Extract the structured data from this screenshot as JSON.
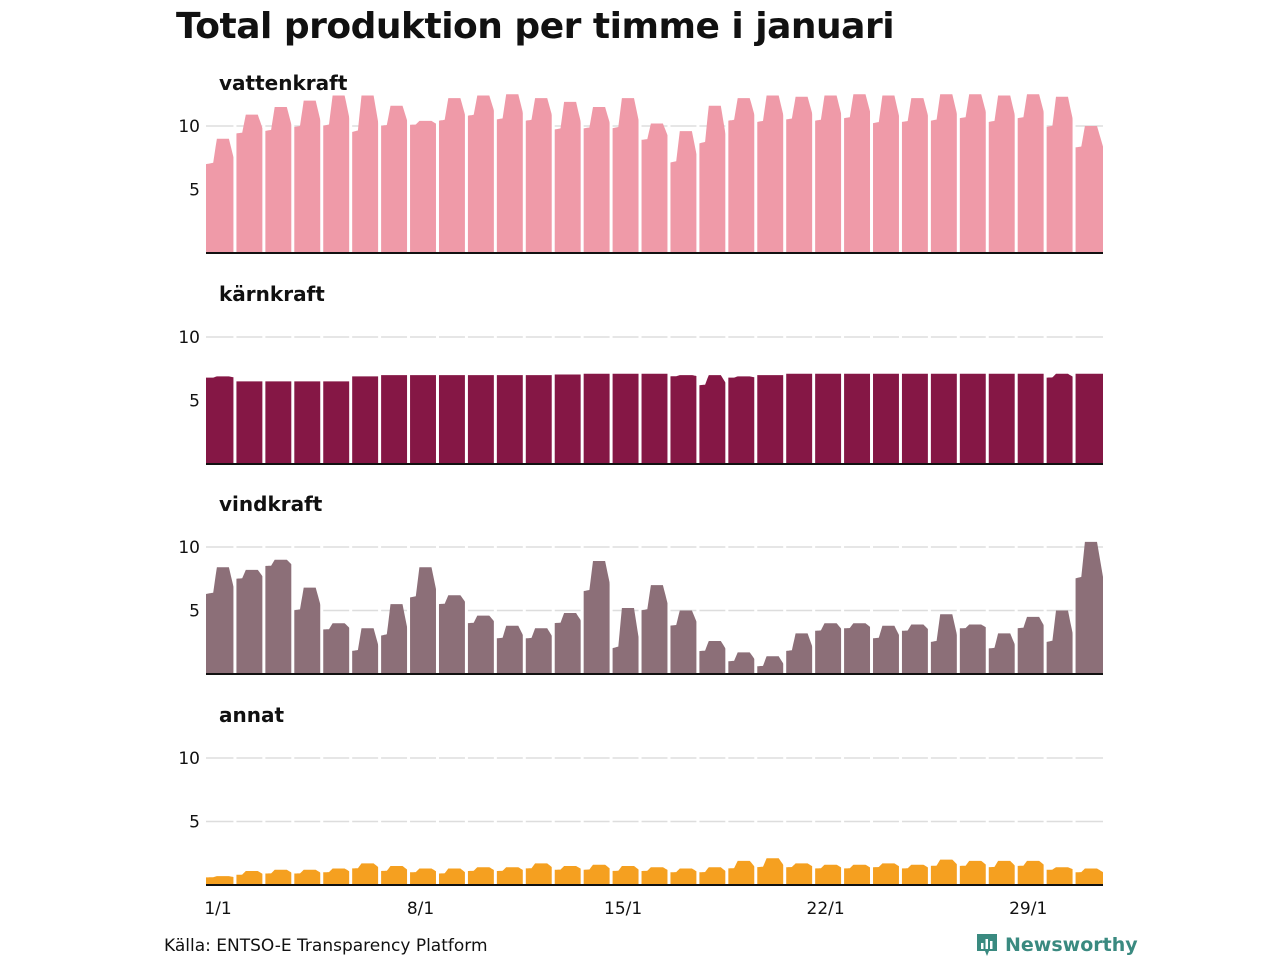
{
  "title": "Total produktion per timme i januari",
  "source": "Källa: ENTSO-E Transparency Platform",
  "brand": "Newsworthy",
  "colors": {
    "brand": "#3a8a80",
    "gridline": "#dddddd",
    "baseline": "#111111",
    "day_separator": "#ffffff"
  },
  "chart_data": [
    {
      "type": "area",
      "title": "vattenkraft",
      "color": "#ef9aa8",
      "ylim": [
        0,
        10
      ],
      "yticks": [
        5,
        10
      ],
      "x": [
        "1/1",
        "2/1",
        "3/1",
        "4/1",
        "5/1",
        "6/1",
        "7/1",
        "8/1",
        "9/1",
        "10/1",
        "11/1",
        "12/1",
        "13/1",
        "14/1",
        "15/1",
        "16/1",
        "17/1",
        "18/1",
        "19/1",
        "20/1",
        "21/1",
        "22/1",
        "23/1",
        "24/1",
        "25/1",
        "26/1",
        "27/1",
        "28/1",
        "29/1",
        "30/1",
        "31/1"
      ],
      "daily_night": [
        7.0,
        9.4,
        9.6,
        9.9,
        10.0,
        9.5,
        10.0,
        10.1,
        10.4,
        10.8,
        10.5,
        10.4,
        9.7,
        9.8,
        9.8,
        8.9,
        7.1,
        8.6,
        10.4,
        10.3,
        10.5,
        10.4,
        10.6,
        10.2,
        10.3,
        10.4,
        10.6,
        10.3,
        10.6,
        9.9,
        8.3
      ],
      "daily_peak": [
        9.0,
        10.9,
        11.5,
        12.0,
        12.4,
        12.4,
        11.6,
        10.4,
        12.2,
        12.4,
        12.5,
        12.2,
        11.9,
        11.5,
        12.2,
        10.2,
        9.6,
        11.6,
        12.2,
        12.4,
        12.3,
        12.4,
        12.5,
        12.4,
        12.2,
        12.5,
        12.5,
        12.4,
        12.5,
        12.3,
        10.0
      ],
      "xticks": [
        "1/1",
        "8/1",
        "15/1",
        "22/1",
        "29/1"
      ]
    },
    {
      "type": "area",
      "title": "kärnkraft",
      "color": "#851745",
      "ylim": [
        0,
        10
      ],
      "yticks": [
        5,
        10
      ],
      "x": [
        "1/1",
        "2/1",
        "3/1",
        "4/1",
        "5/1",
        "6/1",
        "7/1",
        "8/1",
        "9/1",
        "10/1",
        "11/1",
        "12/1",
        "13/1",
        "14/1",
        "15/1",
        "16/1",
        "17/1",
        "18/1",
        "19/1",
        "20/1",
        "21/1",
        "22/1",
        "23/1",
        "24/1",
        "25/1",
        "26/1",
        "27/1",
        "28/1",
        "29/1",
        "30/1",
        "31/1"
      ],
      "daily_night": [
        6.8,
        6.5,
        6.5,
        6.5,
        6.5,
        6.9,
        7.0,
        7.0,
        7.0,
        7.0,
        7.0,
        7.0,
        7.05,
        7.1,
        7.1,
        7.1,
        6.9,
        6.2,
        6.8,
        7.0,
        7.1,
        7.1,
        7.1,
        7.1,
        7.1,
        7.1,
        7.1,
        7.1,
        7.1,
        6.8,
        7.1
      ],
      "daily_peak": [
        6.9,
        6.5,
        6.5,
        6.5,
        6.5,
        6.9,
        7.0,
        7.0,
        7.0,
        7.0,
        7.0,
        7.0,
        7.05,
        7.1,
        7.1,
        7.1,
        7.0,
        7.0,
        6.9,
        7.0,
        7.1,
        7.1,
        7.1,
        7.1,
        7.1,
        7.1,
        7.1,
        7.1,
        7.1,
        7.1,
        7.1
      ],
      "xticks": [
        "1/1",
        "8/1",
        "15/1",
        "22/1",
        "29/1"
      ]
    },
    {
      "type": "area",
      "title": "vindkraft",
      "color": "#8c6f78",
      "ylim": [
        0,
        10
      ],
      "yticks": [
        5,
        10
      ],
      "x": [
        "1/1",
        "2/1",
        "3/1",
        "4/1",
        "5/1",
        "6/1",
        "7/1",
        "8/1",
        "9/1",
        "10/1",
        "11/1",
        "12/1",
        "13/1",
        "14/1",
        "15/1",
        "16/1",
        "17/1",
        "18/1",
        "19/1",
        "20/1",
        "21/1",
        "22/1",
        "23/1",
        "24/1",
        "25/1",
        "26/1",
        "27/1",
        "28/1",
        "29/1",
        "30/1",
        "31/1"
      ],
      "daily_night": [
        6.3,
        7.5,
        8.5,
        5.0,
        3.5,
        1.8,
        3.0,
        6.0,
        5.5,
        4.0,
        2.8,
        2.8,
        4.0,
        6.5,
        2.0,
        5.0,
        3.8,
        1.8,
        1.0,
        0.6,
        1.8,
        3.4,
        3.6,
        2.8,
        3.4,
        2.5,
        3.6,
        2.0,
        3.6,
        2.5,
        7.5
      ],
      "daily_peak": [
        8.4,
        8.2,
        9.0,
        6.8,
        4.0,
        3.6,
        5.5,
        8.4,
        6.2,
        4.6,
        3.8,
        3.6,
        4.8,
        8.9,
        5.2,
        7.0,
        5.0,
        2.6,
        1.7,
        1.4,
        3.2,
        4.0,
        4.0,
        3.8,
        3.9,
        4.7,
        3.9,
        3.2,
        4.5,
        5.0,
        10.4
      ],
      "xticks": [
        "1/1",
        "8/1",
        "15/1",
        "22/1",
        "29/1"
      ]
    },
    {
      "type": "area",
      "title": "annat",
      "color": "#f5a020",
      "ylim": [
        0,
        10
      ],
      "yticks": [
        5,
        10
      ],
      "x": [
        "1/1",
        "2/1",
        "3/1",
        "4/1",
        "5/1",
        "6/1",
        "7/1",
        "8/1",
        "9/1",
        "10/1",
        "11/1",
        "12/1",
        "13/1",
        "14/1",
        "15/1",
        "16/1",
        "17/1",
        "18/1",
        "19/1",
        "20/1",
        "21/1",
        "22/1",
        "23/1",
        "24/1",
        "25/1",
        "26/1",
        "27/1",
        "28/1",
        "29/1",
        "30/1",
        "31/1"
      ],
      "daily_night": [
        0.6,
        0.8,
        0.9,
        0.9,
        1.0,
        1.3,
        1.1,
        1.0,
        0.9,
        1.1,
        1.1,
        1.3,
        1.2,
        1.2,
        1.1,
        1.1,
        1.0,
        1.0,
        1.3,
        1.4,
        1.4,
        1.3,
        1.3,
        1.4,
        1.3,
        1.5,
        1.5,
        1.4,
        1.5,
        1.2,
        1.0
      ],
      "daily_peak": [
        0.7,
        1.1,
        1.2,
        1.2,
        1.3,
        1.7,
        1.5,
        1.3,
        1.3,
        1.4,
        1.4,
        1.7,
        1.5,
        1.6,
        1.5,
        1.4,
        1.3,
        1.4,
        1.9,
        2.1,
        1.7,
        1.6,
        1.6,
        1.7,
        1.6,
        2.0,
        1.9,
        1.9,
        1.9,
        1.4,
        1.3
      ],
      "xticks": [
        "1/1",
        "8/1",
        "15/1",
        "22/1",
        "29/1"
      ]
    }
  ]
}
